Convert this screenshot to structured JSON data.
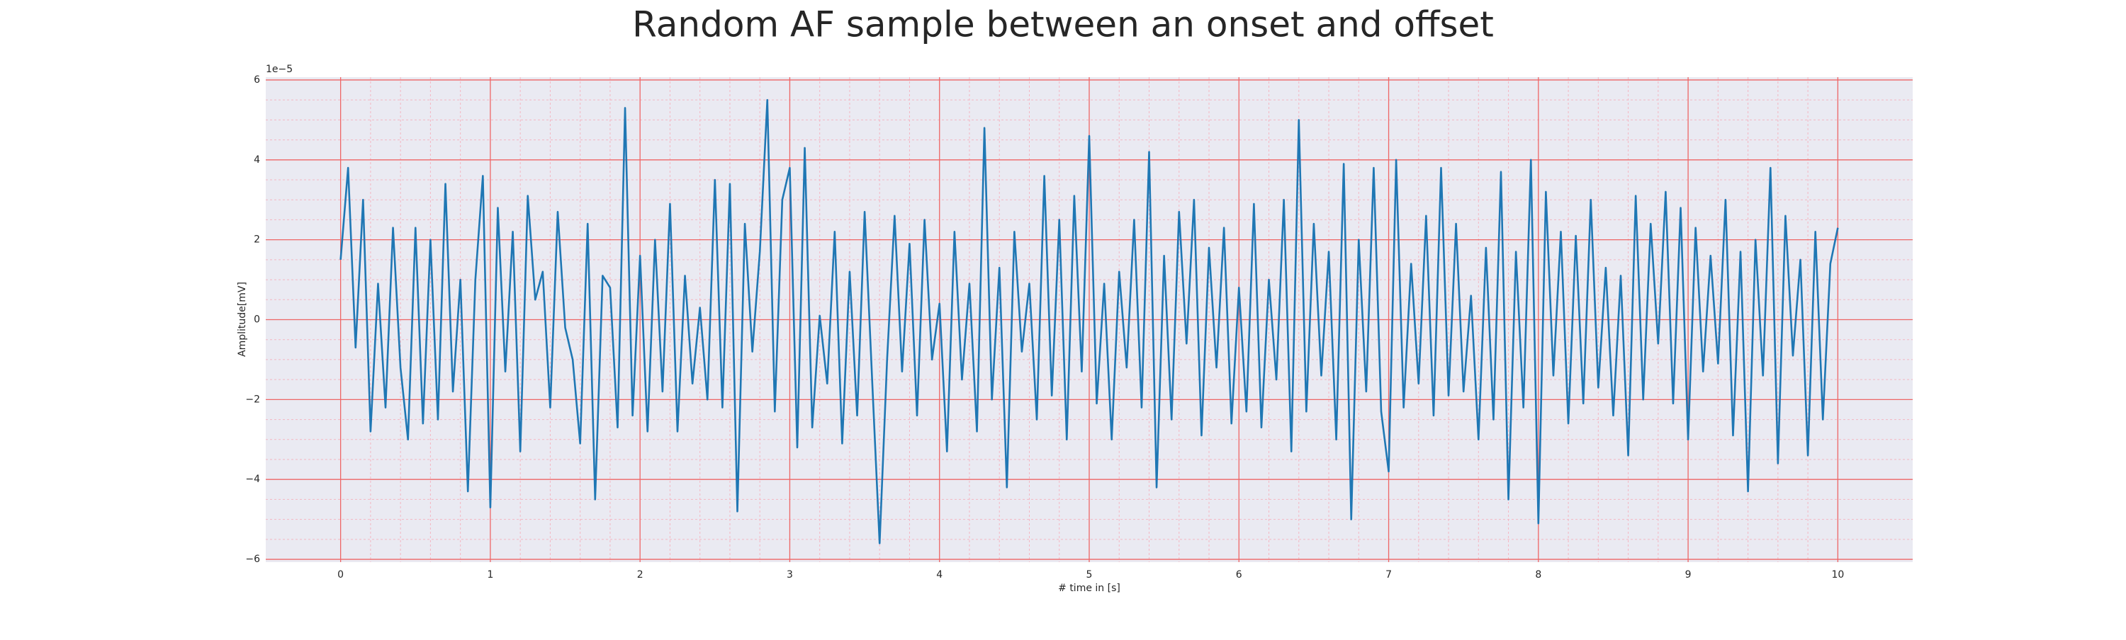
{
  "chart_data": {
    "type": "line",
    "title": "Random AF sample between an onset and offset",
    "xlabel": "# time in [s]",
    "ylabel": "Amplitude[mV]",
    "y_offset_label": "1e−5",
    "color": "#1f77b4",
    "grid": true,
    "xlim": [
      -0.5,
      10.5
    ],
    "ylim": [
      -6.07,
      6.07
    ],
    "xticks": [
      0,
      1,
      2,
      3,
      4,
      5,
      6,
      7,
      8,
      9,
      10
    ],
    "yticks": [
      {
        "value": -6,
        "label": "−6"
      },
      {
        "value": -4,
        "label": "−4"
      },
      {
        "value": -2,
        "label": "−2"
      },
      0,
      2,
      4,
      6
    ],
    "x": [
      0,
      0.05,
      0.1,
      0.15,
      0.2,
      0.25,
      0.3,
      0.35,
      0.4,
      0.45,
      0.5,
      0.55,
      0.6,
      0.65,
      0.7,
      0.75,
      0.8,
      0.85,
      0.9,
      0.95,
      1,
      1.05,
      1.1,
      1.15,
      1.2,
      1.25,
      1.3,
      1.35,
      1.4,
      1.45,
      1.5,
      1.55,
      1.6,
      1.65,
      1.7,
      1.75,
      1.8,
      1.85,
      1.9,
      1.95,
      2,
      2.05,
      2.1,
      2.15,
      2.2,
      2.25,
      2.3,
      2.35,
      2.4,
      2.45,
      2.5,
      2.55,
      2.6,
      2.65,
      2.7,
      2.75,
      2.8,
      2.85,
      2.9,
      2.95,
      3,
      3.05,
      3.1,
      3.15,
      3.2,
      3.25,
      3.3,
      3.35,
      3.4,
      3.45,
      3.5,
      3.55,
      3.6,
      3.65,
      3.7,
      3.75,
      3.8,
      3.85,
      3.9,
      3.95,
      4,
      4.05,
      4.1,
      4.15,
      4.2,
      4.25,
      4.3,
      4.35,
      4.4,
      4.45,
      4.5,
      4.55,
      4.6,
      4.65,
      4.7,
      4.75,
      4.8,
      4.85,
      4.9,
      4.95,
      5,
      5.05,
      5.1,
      5.15,
      5.2,
      5.25,
      5.3,
      5.35,
      5.4,
      5.45,
      5.5,
      5.55,
      5.6,
      5.65,
      5.7,
      5.75,
      5.8,
      5.85,
      5.9,
      5.95,
      6,
      6.05,
      6.1,
      6.15,
      6.2,
      6.25,
      6.3,
      6.35,
      6.4,
      6.45,
      6.5,
      6.55,
      6.6,
      6.65,
      6.7,
      6.75,
      6.8,
      6.85,
      6.9,
      6.95,
      7,
      7.05,
      7.1,
      7.15,
      7.2,
      7.25,
      7.3,
      7.35,
      7.4,
      7.45,
      7.5,
      7.55,
      7.6,
      7.65,
      7.7,
      7.75,
      7.8,
      7.85,
      7.9,
      7.95,
      8,
      8.05,
      8.1,
      8.15,
      8.2,
      8.25,
      8.3,
      8.35,
      8.4,
      8.45,
      8.5,
      8.55,
      8.6,
      8.65,
      8.7,
      8.75,
      8.8,
      8.85,
      8.9,
      8.95,
      9,
      9.05,
      9.1,
      9.15,
      9.2,
      9.25,
      9.3,
      9.35,
      9.4,
      9.45,
      9.5,
      9.55,
      9.6,
      9.65,
      9.7,
      9.75,
      9.8,
      9.85,
      9.9,
      9.95,
      10
    ],
    "values": [
      1.5,
      3.8,
      -0.7,
      3.0,
      -2.8,
      0.9,
      -2.2,
      2.3,
      -1.2,
      -3.0,
      2.3,
      -2.6,
      2.0,
      -2.5,
      3.4,
      -1.8,
      1.0,
      -4.3,
      1.0,
      3.6,
      -4.7,
      2.8,
      -1.3,
      2.2,
      -3.3,
      3.1,
      0.5,
      1.2,
      -2.2,
      2.7,
      -0.2,
      -1.0,
      -3.1,
      2.4,
      -4.5,
      1.1,
      0.8,
      -2.7,
      5.3,
      -2.4,
      1.6,
      -2.8,
      2.0,
      -1.8,
      2.9,
      -2.8,
      1.1,
      -1.6,
      0.3,
      -2.0,
      3.5,
      -2.2,
      3.4,
      -4.8,
      2.4,
      -0.8,
      1.7,
      5.5,
      -2.3,
      3.0,
      3.8,
      -3.2,
      4.3,
      -2.7,
      0.1,
      -1.6,
      2.2,
      -3.1,
      1.2,
      -2.4,
      2.7,
      -1.5,
      -5.6,
      -1.0,
      2.6,
      -1.3,
      1.9,
      -2.4,
      2.5,
      -1.0,
      0.4,
      -3.3,
      2.2,
      -1.5,
      0.9,
      -2.8,
      4.8,
      -2.0,
      1.3,
      -4.2,
      2.2,
      -0.8,
      0.9,
      -2.5,
      3.6,
      -1.9,
      2.5,
      -3.0,
      3.1,
      -1.3,
      4.6,
      -2.1,
      0.9,
      -3.0,
      1.2,
      -1.2,
      2.5,
      -2.2,
      4.2,
      -4.2,
      1.6,
      -2.5,
      2.7,
      -0.6,
      3.0,
      -2.9,
      1.8,
      -1.2,
      2.3,
      -2.6,
      0.8,
      -2.3,
      2.9,
      -2.7,
      1.0,
      -1.5,
      3.0,
      -3.3,
      5.0,
      -2.3,
      2.4,
      -1.4,
      1.7,
      -3.0,
      3.9,
      -5.0,
      2.0,
      -1.8,
      3.8,
      -2.3,
      -3.8,
      4.0,
      -2.2,
      1.4,
      -1.6,
      2.6,
      -2.4,
      3.8,
      -1.9,
      2.4,
      -1.8,
      0.6,
      -3.0,
      1.8,
      -2.5,
      3.7,
      -4.5,
      1.7,
      -2.2,
      4.0,
      -5.1,
      3.2,
      -1.4,
      2.2,
      -2.6,
      2.1,
      -2.1,
      3.0,
      -1.7,
      1.3,
      -2.4,
      1.1,
      -3.4,
      3.1,
      -2.0,
      2.4,
      -0.6,
      3.2,
      -2.1,
      2.8,
      -3.0,
      2.3,
      -1.3,
      1.6,
      -1.1,
      3.0,
      -2.9,
      1.7,
      -4.3,
      2.0,
      -1.4,
      3.8,
      -3.6,
      2.6,
      -0.9,
      1.5,
      -3.4,
      2.2,
      -2.5,
      1.4,
      2.3
    ]
  }
}
